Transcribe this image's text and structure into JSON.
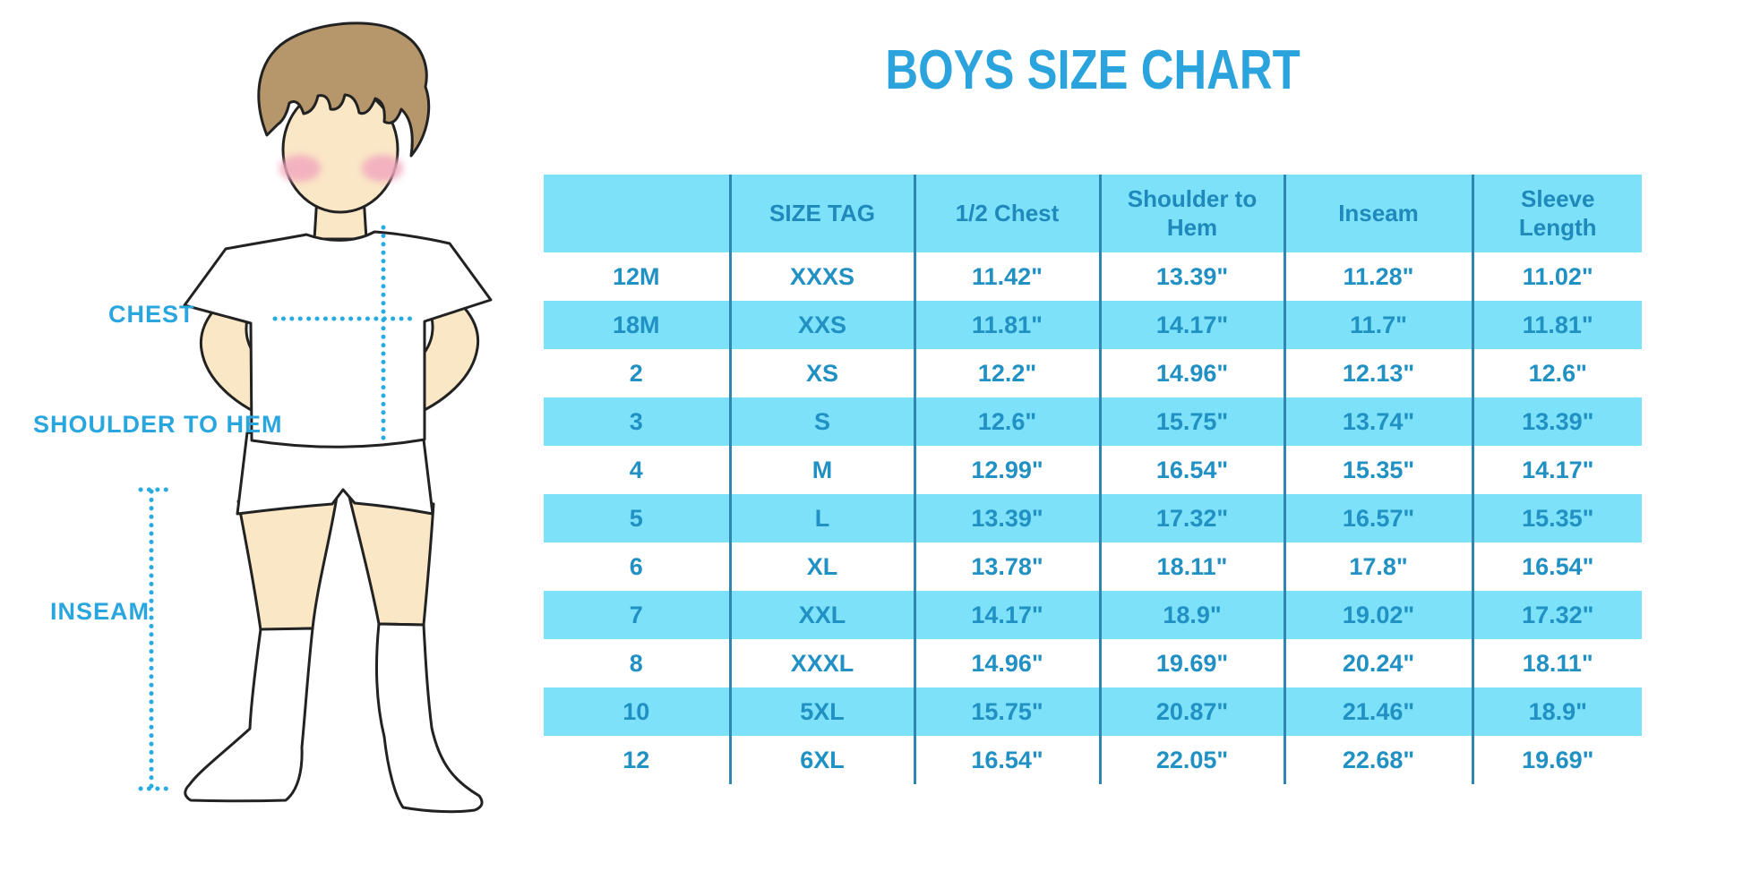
{
  "title": "BOYS SIZE CHART",
  "colors": {
    "title-blue": "#2BA3DC",
    "label-blue": "#2AA6DF",
    "dot-blue": "#29ABE2",
    "stripe": "#7CE1F9",
    "separator": "#2F86B2",
    "head-text": "#2089BB",
    "cell-text": "#2191C4",
    "skin": "#FAE7C6",
    "hair": "#B6966B",
    "blush": "#F2A9BE",
    "outline": "#222222"
  },
  "figure": {
    "chest_label": "CHEST",
    "shoulder_label": "SHOULDER TO HEM",
    "inseam_label": "INSEAM"
  },
  "chart_data": {
    "type": "table",
    "title": "BOYS SIZE CHART",
    "headers": [
      "",
      "SIZE TAG",
      "1/2 Chest",
      "Shoulder to Hem",
      "Inseam",
      "Sleeve Length"
    ],
    "rows": [
      [
        "12M",
        "XXXS",
        "11.42\"",
        "13.39\"",
        "11.28\"",
        "11.02\""
      ],
      [
        "18M",
        "XXS",
        "11.81\"",
        "14.17\"",
        "11.7\"",
        "11.81\""
      ],
      [
        "2",
        "XS",
        "12.2\"",
        "14.96\"",
        "12.13\"",
        "12.6\""
      ],
      [
        "3",
        "S",
        "12.6\"",
        "15.75\"",
        "13.74\"",
        "13.39\""
      ],
      [
        "4",
        "M",
        "12.99\"",
        "16.54\"",
        "15.35\"",
        "14.17\""
      ],
      [
        "5",
        "L",
        "13.39\"",
        "17.32\"",
        "16.57\"",
        "15.35\""
      ],
      [
        "6",
        "XL",
        "13.78\"",
        "18.11\"",
        "17.8\"",
        "16.54\""
      ],
      [
        "7",
        "XXL",
        "14.17\"",
        "18.9\"",
        "19.02\"",
        "17.32\""
      ],
      [
        "8",
        "XXXL",
        "14.96\"",
        "19.69\"",
        "20.24\"",
        "18.11\""
      ],
      [
        "10",
        "5XL",
        "15.75\"",
        "20.87\"",
        "21.46\"",
        "18.9\""
      ],
      [
        "12",
        "6XL",
        "16.54\"",
        "22.05\"",
        "22.68\"",
        "19.69\""
      ]
    ]
  }
}
